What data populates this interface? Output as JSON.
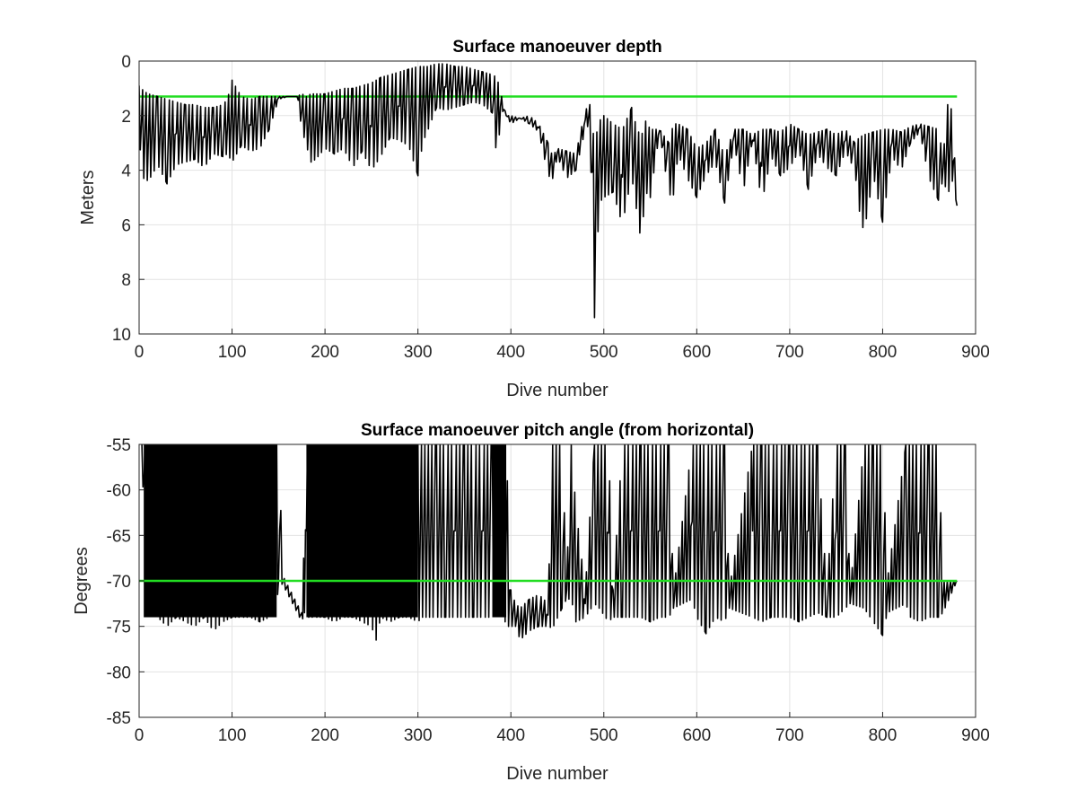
{
  "chart_data": [
    {
      "type": "line",
      "title": "Surface manoeuver depth",
      "xlabel": "Dive number",
      "ylabel": "Meters",
      "xlim": [
        0,
        900
      ],
      "ylim": [
        0,
        10
      ],
      "y_reversed": true,
      "grid": true,
      "xticks": [
        "0",
        "100",
        "200",
        "300",
        "400",
        "500",
        "600",
        "700",
        "800",
        "900"
      ],
      "yticks": [
        "0",
        "2",
        "4",
        "6",
        "8",
        "10"
      ],
      "reference_line": {
        "y": 1.3,
        "x_range": [
          0,
          880
        ],
        "color": "#22dd22"
      },
      "series": [
        {
          "color": "#000000",
          "x": [
            0,
            5,
            10,
            20,
            30,
            40,
            50,
            60,
            70,
            80,
            90,
            95,
            100,
            110,
            120,
            130,
            140,
            150,
            160,
            170,
            175,
            180,
            185,
            190,
            200,
            210,
            220,
            230,
            240,
            250,
            260,
            270,
            280,
            290,
            300,
            305,
            310,
            320,
            330,
            340,
            350,
            360,
            370,
            380,
            385,
            390,
            395,
            400,
            410,
            420,
            430,
            440,
            445,
            450,
            460,
            470,
            480,
            485,
            490,
            495,
            500,
            510,
            520,
            530,
            535,
            540,
            545,
            550,
            560,
            570,
            575,
            580,
            590,
            600,
            610,
            620,
            630,
            640,
            650,
            660,
            670,
            680,
            690,
            700,
            710,
            720,
            730,
            740,
            750,
            760,
            770,
            775,
            780,
            790,
            800,
            810,
            820,
            830,
            840,
            850,
            860,
            865,
            870,
            875,
            880
          ],
          "y_low": [
            0.9,
            1.1,
            1.2,
            1.3,
            1.4,
            1.5,
            1.6,
            1.6,
            1.7,
            1.7,
            1.6,
            1.4,
            0.7,
            1.3,
            1.4,
            1.3,
            1.3,
            1.3,
            1.3,
            1.3,
            1.2,
            1.3,
            1.2,
            1.2,
            1.2,
            1.1,
            1.0,
            1.0,
            0.9,
            0.8,
            0.6,
            0.5,
            0.4,
            0.3,
            0.2,
            0.2,
            0.2,
            0.1,
            0.1,
            0.2,
            0.2,
            0.3,
            0.4,
            0.5,
            0.6,
            1.3,
            2.0,
            2.0,
            2.1,
            2.0,
            2.3,
            3.0,
            3.5,
            3.2,
            3.3,
            3.4,
            1.8,
            1.6,
            3.0,
            2.2,
            2.0,
            2.3,
            2.5,
            1.7,
            2.4,
            2.8,
            2.2,
            2.5,
            2.5,
            3.0,
            2.3,
            2.3,
            2.5,
            3.2,
            3.0,
            2.5,
            3.5,
            2.5,
            2.5,
            2.7,
            2.5,
            2.5,
            2.6,
            2.3,
            2.5,
            2.7,
            2.6,
            2.5,
            2.7,
            2.5,
            3.0,
            2.8,
            2.7,
            2.6,
            2.5,
            2.5,
            2.6,
            2.4,
            2.3,
            2.4,
            2.5,
            3.5,
            1.6,
            1.8,
            5.3
          ],
          "y_high": [
            2.9,
            4.3,
            4.4,
            3.8,
            4.5,
            3.8,
            3.7,
            3.6,
            3.9,
            3.4,
            3.5,
            3.4,
            3.7,
            3.1,
            3.3,
            3.2,
            2.5,
            1.4,
            1.3,
            1.3,
            2.5,
            3.1,
            3.7,
            3.6,
            3.2,
            3.4,
            3.2,
            3.9,
            3.3,
            4.0,
            3.5,
            2.8,
            2.9,
            3.1,
            4.2,
            3.0,
            2.6,
            1.7,
            1.8,
            1.7,
            1.6,
            1.5,
            1.6,
            1.9,
            3.6,
            1.8,
            2.0,
            2.3,
            2.1,
            2.3,
            2.6,
            4.2,
            4.3,
            3.5,
            4.3,
            4.0,
            2.5,
            2.3,
            9.4,
            5.2,
            5.0,
            4.8,
            6.0,
            4.2,
            5.4,
            6.6,
            4.8,
            5.0,
            2.6,
            4.9,
            4.9,
            3.4,
            4.3,
            5.0,
            4.2,
            3.7,
            5.2,
            3.0,
            4.8,
            2.9,
            5.2,
            3.5,
            4.2,
            3.9,
            3.3,
            4.7,
            3.4,
            3.9,
            4.2,
            3.3,
            4.0,
            5.5,
            6.3,
            4.2,
            5.9,
            3.5,
            4.0,
            3.0,
            2.6,
            4.3,
            5.1,
            4.3,
            4.9,
            4.4,
            5.3
          ]
        }
      ]
    },
    {
      "type": "line",
      "title": "Surface manoeuver pitch angle (from horizontal)",
      "xlabel": "Dive number",
      "ylabel": "Degrees",
      "xlim": [
        0,
        900
      ],
      "ylim": [
        -85,
        -55
      ],
      "grid": true,
      "xticks": [
        "0",
        "100",
        "200",
        "300",
        "400",
        "500",
        "600",
        "700",
        "800",
        "900"
      ],
      "yticks": [
        "-55",
        "-60",
        "-65",
        "-70",
        "-75",
        "-80",
        "-85"
      ],
      "reference_line": {
        "y": -70,
        "x_range": [
          0,
          880
        ],
        "color": "#22dd22"
      },
      "dense_band": {
        "x_ranges": [
          [
            5,
            148
          ],
          [
            180,
            300
          ],
          [
            380,
            395
          ]
        ],
        "y_top": -55,
        "y_bottom": -74
      },
      "series": [
        {
          "color": "#000000",
          "x": [
            3,
            10,
            20,
            30,
            40,
            50,
            60,
            70,
            80,
            90,
            100,
            110,
            120,
            130,
            140,
            148,
            150,
            155,
            160,
            165,
            170,
            175,
            178,
            180,
            190,
            200,
            210,
            220,
            230,
            240,
            250,
            255,
            260,
            270,
            280,
            290,
            300,
            305,
            310,
            320,
            330,
            340,
            350,
            360,
            370,
            380,
            390,
            395,
            400,
            405,
            410,
            420,
            430,
            440,
            445,
            455,
            460,
            465,
            470,
            480,
            490,
            495,
            505,
            510,
            520,
            530,
            540,
            550,
            560,
            570,
            575,
            595,
            600,
            610,
            620,
            630,
            635,
            660,
            670,
            680,
            690,
            700,
            710,
            720,
            730,
            740,
            750,
            760,
            765,
            780,
            790,
            800,
            805,
            825,
            830,
            840,
            850,
            860,
            865,
            880
          ],
          "y_low": [
            -55,
            -55,
            -55,
            -55,
            -55,
            -55,
            -55,
            -55,
            -55,
            -55,
            -55,
            -55,
            -55,
            -55,
            -55,
            -55,
            -55,
            -69.5,
            -70.5,
            -71.5,
            -72.5,
            -73.5,
            -55,
            -55,
            -55,
            -55,
            -55,
            -55,
            -55,
            -55,
            -55,
            -55,
            -55,
            -55,
            -55,
            -55,
            -55,
            -55,
            -55,
            -55,
            -55,
            -55,
            -55,
            -55,
            -55,
            -55,
            -55,
            -55,
            -71,
            -72.5,
            -73,
            -72,
            -71.5,
            -72.5,
            -55,
            -55,
            -70,
            -55,
            -62,
            -71,
            -55,
            -55,
            -55,
            -71,
            -55,
            -55,
            -55,
            -55,
            -55,
            -55,
            -71,
            -55,
            -55,
            -55,
            -55,
            -55,
            -71,
            -55,
            -55,
            -55,
            -55,
            -55,
            -55,
            -55,
            -55,
            -71,
            -55,
            -55,
            -71,
            -55,
            -55,
            -55,
            -70,
            -55,
            -55,
            -55,
            -55,
            -55,
            -70,
            -70
          ],
          "y_high": [
            -57,
            -73,
            -74,
            -75,
            -74,
            -74.5,
            -75,
            -74,
            -75.5,
            -74.5,
            -74,
            -74,
            -74,
            -74.5,
            -74,
            -73,
            -70,
            -70.5,
            -71.5,
            -72.5,
            -73.5,
            -74.5,
            -73.5,
            -74,
            -74,
            -74,
            -74.5,
            -74,
            -74,
            -74.5,
            -75,
            -76.5,
            -74,
            -74.5,
            -74,
            -74,
            -74.5,
            -74,
            -74,
            -74,
            -74,
            -74,
            -74,
            -74,
            -74,
            -74,
            -73,
            -75,
            -75,
            -75,
            -76.5,
            -75.5,
            -75,
            -75,
            -75.2,
            -73,
            -72,
            -72,
            -74.5,
            -74,
            -72.5,
            -73,
            -74.5,
            -74,
            -74,
            -74,
            -74,
            -74.5,
            -74,
            -74,
            -73,
            -72,
            -74,
            -75.8,
            -74,
            -74.5,
            -73,
            -74,
            -74.5,
            -74,
            -74,
            -74,
            -74.5,
            -74,
            -73.5,
            -74,
            -74,
            -73,
            -72.5,
            -73,
            -74.5,
            -76,
            -73.5,
            -72.5,
            -74,
            -74.5,
            -74,
            -74,
            -73.5,
            -70
          ]
        }
      ]
    }
  ]
}
